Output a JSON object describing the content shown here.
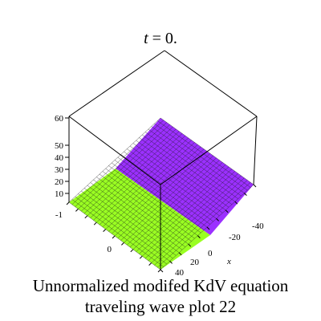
{
  "chart_data": {
    "type": "surface",
    "title_var": "t",
    "title_rest": " = 0.",
    "axis_x_label": "x",
    "z_ticks": [
      "10",
      "20",
      "30",
      "40",
      "50",
      "60"
    ],
    "y_ticks": [
      "-1",
      "0"
    ],
    "x_ticks": [
      "-40",
      "-20",
      "0",
      "20",
      "40"
    ],
    "surface_colors": [
      "#9b30ff",
      "#9aff22"
    ],
    "surface_description": "flat surface near z=0 split diagonally into two colored regions (purple and lime green)",
    "grid": true
  },
  "caption": {
    "line1": "Unnormalized modifed KdV equation",
    "line2": "traveling wave plot 22"
  }
}
